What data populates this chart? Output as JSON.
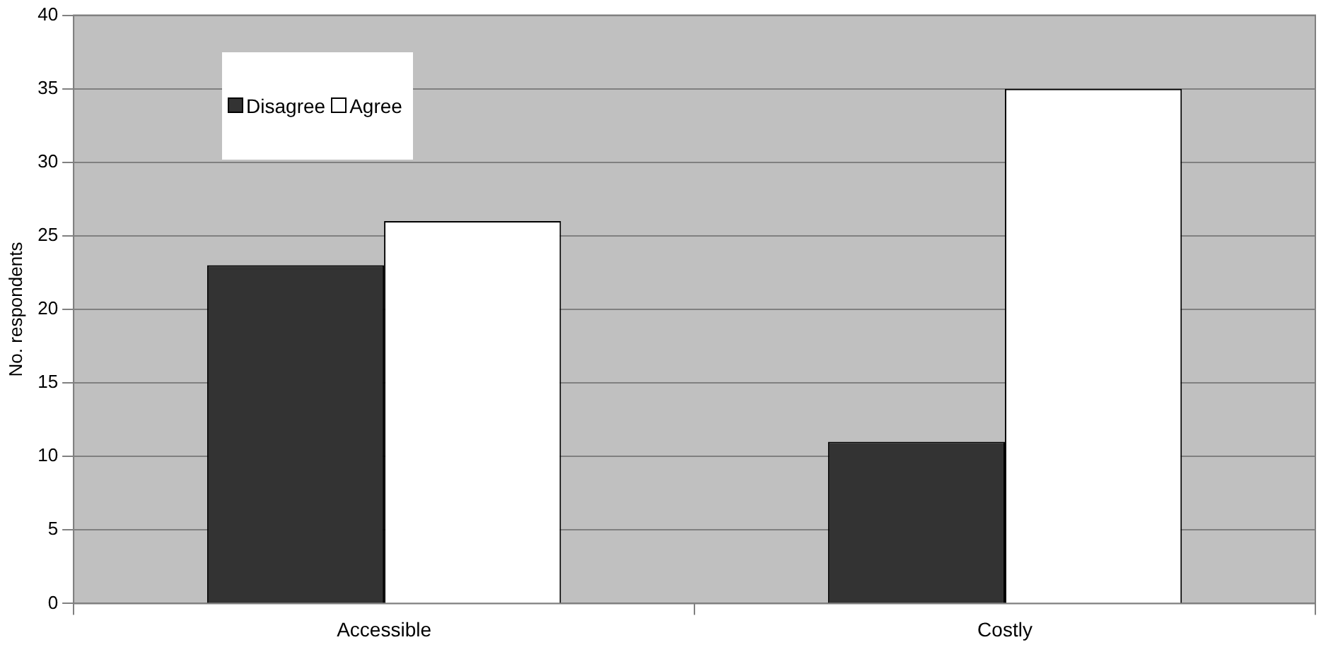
{
  "chart_data": {
    "type": "bar",
    "ylabel": "No. respondents",
    "categories": [
      "Accessible",
      "Costly"
    ],
    "series": [
      {
        "name": "Disagree",
        "color": "#333333",
        "values": [
          23,
          11
        ]
      },
      {
        "name": "Agree",
        "color": "#ffffff",
        "values": [
          26,
          35
        ]
      }
    ],
    "ylim": [
      0,
      40
    ],
    "yticks": [
      0,
      5,
      10,
      15,
      20,
      25,
      30,
      35,
      40
    ],
    "grid": "y",
    "legend": "top left"
  }
}
